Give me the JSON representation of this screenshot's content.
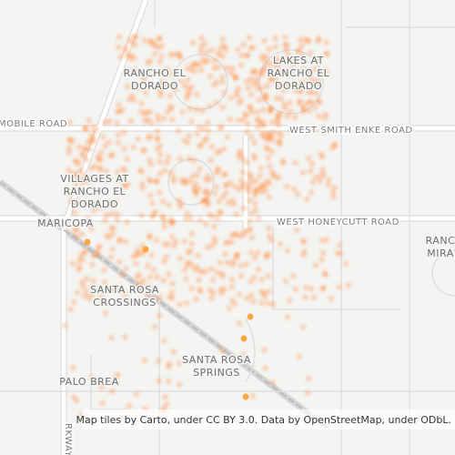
{
  "labels": [
    {
      "name": "rancho-el-dorado",
      "lines": [
        "RANCHO EL",
        "DORADO"
      ]
    },
    {
      "name": "lakes-at-rancho-el-dorado",
      "lines": [
        "LAKES AT",
        "RANCHO EL",
        "DORADO"
      ]
    },
    {
      "name": "villages-at-rancho-el-dorado",
      "lines": [
        "VILLAGES AT",
        "RANCHO EL",
        "DORADO"
      ]
    },
    {
      "name": "maricopa",
      "lines": [
        "MARICOPA"
      ]
    },
    {
      "name": "santa-rosa-crossings",
      "lines": [
        "SANTA ROSA",
        "CROSSINGS"
      ]
    },
    {
      "name": "santa-rosa-springs",
      "lines": [
        "SANTA ROSA",
        "SPRINGS"
      ]
    },
    {
      "name": "palo-brea",
      "lines": [
        "PALO BREA"
      ]
    },
    {
      "name": "rancho-mirage",
      "lines": [
        "RANC",
        "MIRA"
      ]
    }
  ],
  "roads": [
    "MOBILE ROAD",
    "WEST SMITH ENKE ROAD",
    "WEST HONEYCUTT ROAD",
    "RKWAY"
  ],
  "attribution": "Map tiles by Carto, under CC BY 3.0. Data by OpenStreetMap, under ODbL."
}
